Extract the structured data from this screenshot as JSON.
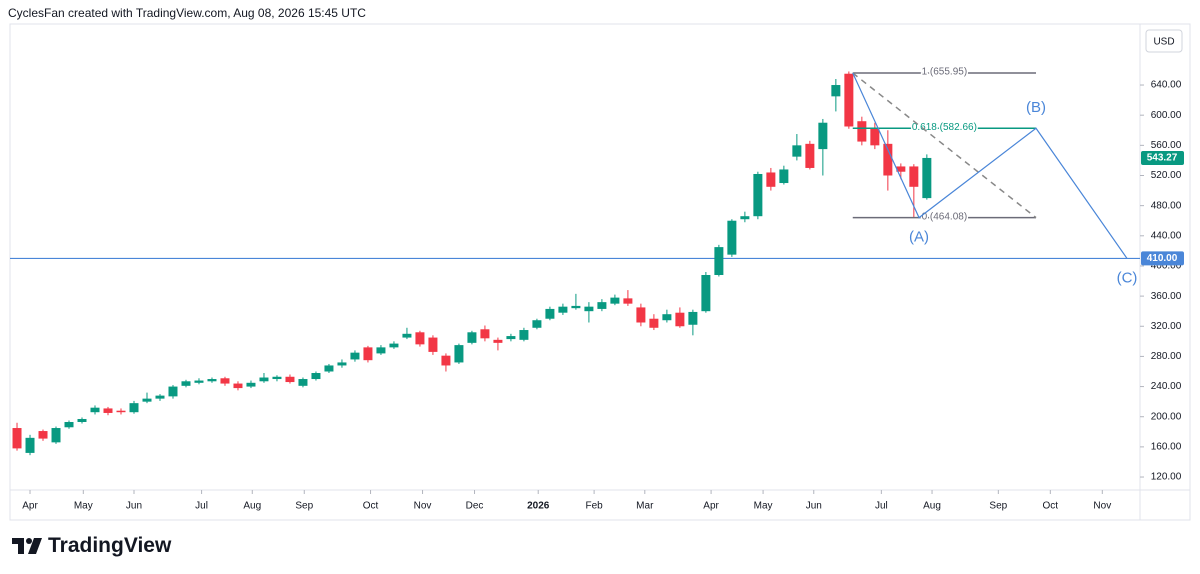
{
  "header": {
    "text": "CyclesFan created with TradingView.com, Aug 08, 2026 15:45 UTC"
  },
  "footer": {
    "brand": "TradingView"
  },
  "chart_data": {
    "type": "candlestick",
    "currency": "USD",
    "up_color": "#089981",
    "down_color": "#f23645",
    "ylim": [
      102.8,
      713
    ],
    "yticks": [
      {
        "value": 120,
        "label": "120.00"
      },
      {
        "value": 160,
        "label": "160.00"
      },
      {
        "value": 200,
        "label": "200.00"
      },
      {
        "value": 240,
        "label": "240.00"
      },
      {
        "value": 280,
        "label": "280.00"
      },
      {
        "value": 320,
        "label": "320.00"
      },
      {
        "value": 360,
        "label": "360.00"
      },
      {
        "value": 400,
        "label": "400.00"
      },
      {
        "value": 440,
        "label": "440.00"
      },
      {
        "value": 480,
        "label": "480.00"
      },
      {
        "value": 520,
        "label": "520.00"
      },
      {
        "value": 560,
        "label": "560.00"
      },
      {
        "value": 600,
        "label": "600.00"
      },
      {
        "value": 640,
        "label": "640.00"
      }
    ],
    "xlim": [
      -0.54,
      86.4
    ],
    "xticks": [
      {
        "value": 1,
        "label": "Apr"
      },
      {
        "value": 5.1,
        "label": "May"
      },
      {
        "value": 9.0,
        "label": "Jun"
      },
      {
        "value": 14.2,
        "label": "Jul"
      },
      {
        "value": 18.1,
        "label": "Aug"
      },
      {
        "value": 22.1,
        "label": "Sep"
      },
      {
        "value": 27.2,
        "label": "Oct"
      },
      {
        "value": 31.2,
        "label": "Nov"
      },
      {
        "value": 35.2,
        "label": "Dec"
      },
      {
        "value": 40.1,
        "label": "2026"
      },
      {
        "value": 44.4,
        "label": "Feb"
      },
      {
        "value": 48.3,
        "label": "Mar"
      },
      {
        "value": 53.4,
        "label": "Apr"
      },
      {
        "value": 57.4,
        "label": "May"
      },
      {
        "value": 61.3,
        "label": "Jun"
      },
      {
        "value": 66.5,
        "label": "Jul"
      },
      {
        "value": 70.4,
        "label": "Aug"
      },
      {
        "value": 75.5,
        "label": "Sep"
      },
      {
        "value": 79.5,
        "label": "Oct"
      },
      {
        "value": 83.5,
        "label": "Nov"
      }
    ],
    "candles": [
      {
        "o": 185,
        "h": 192,
        "l": 155,
        "c": 158
      },
      {
        "o": 152,
        "h": 176,
        "l": 149,
        "c": 172
      },
      {
        "o": 181,
        "h": 183,
        "l": 168,
        "c": 171
      },
      {
        "o": 166,
        "h": 187,
        "l": 164,
        "c": 185
      },
      {
        "o": 186,
        "h": 195,
        "l": 184,
        "c": 193
      },
      {
        "o": 193,
        "h": 199,
        "l": 191,
        "c": 197
      },
      {
        "o": 206,
        "h": 215,
        "l": 203,
        "c": 212
      },
      {
        "o": 211,
        "h": 213,
        "l": 202,
        "c": 205
      },
      {
        "o": 208,
        "h": 211,
        "l": 203,
        "c": 206
      },
      {
        "o": 206,
        "h": 221,
        "l": 204,
        "c": 218
      },
      {
        "o": 220,
        "h": 232,
        "l": 218,
        "c": 224
      },
      {
        "o": 224,
        "h": 230,
        "l": 221,
        "c": 228
      },
      {
        "o": 227,
        "h": 242,
        "l": 224,
        "c": 240
      },
      {
        "o": 241,
        "h": 249,
        "l": 239,
        "c": 247
      },
      {
        "o": 245,
        "h": 251,
        "l": 243,
        "c": 248
      },
      {
        "o": 247,
        "h": 252,
        "l": 245,
        "c": 250
      },
      {
        "o": 251,
        "h": 253,
        "l": 241,
        "c": 244
      },
      {
        "o": 244,
        "h": 247,
        "l": 235,
        "c": 238
      },
      {
        "o": 240,
        "h": 248,
        "l": 238,
        "c": 245
      },
      {
        "o": 247,
        "h": 258,
        "l": 245,
        "c": 252
      },
      {
        "o": 250,
        "h": 255,
        "l": 247,
        "c": 253
      },
      {
        "o": 253,
        "h": 256,
        "l": 244,
        "c": 246
      },
      {
        "o": 241,
        "h": 252,
        "l": 239,
        "c": 250
      },
      {
        "o": 250,
        "h": 260,
        "l": 248,
        "c": 258
      },
      {
        "o": 260,
        "h": 270,
        "l": 258,
        "c": 268
      },
      {
        "o": 268,
        "h": 276,
        "l": 265,
        "c": 272
      },
      {
        "o": 276,
        "h": 288,
        "l": 273,
        "c": 285
      },
      {
        "o": 292,
        "h": 294,
        "l": 272,
        "c": 275
      },
      {
        "o": 284,
        "h": 295,
        "l": 282,
        "c": 292
      },
      {
        "o": 292,
        "h": 300,
        "l": 290,
        "c": 297
      },
      {
        "o": 305,
        "h": 318,
        "l": 303,
        "c": 310
      },
      {
        "o": 312,
        "h": 314,
        "l": 293,
        "c": 296
      },
      {
        "o": 305,
        "h": 308,
        "l": 282,
        "c": 286
      },
      {
        "o": 281,
        "h": 284,
        "l": 260,
        "c": 268
      },
      {
        "o": 272,
        "h": 297,
        "l": 270,
        "c": 295
      },
      {
        "o": 298,
        "h": 314,
        "l": 296,
        "c": 312
      },
      {
        "o": 316,
        "h": 321,
        "l": 300,
        "c": 304
      },
      {
        "o": 302,
        "h": 305,
        "l": 288,
        "c": 298
      },
      {
        "o": 303,
        "h": 310,
        "l": 300,
        "c": 307
      },
      {
        "o": 302,
        "h": 318,
        "l": 300,
        "c": 315
      },
      {
        "o": 318,
        "h": 330,
        "l": 316,
        "c": 328
      },
      {
        "o": 330,
        "h": 346,
        "l": 328,
        "c": 343
      },
      {
        "o": 338,
        "h": 350,
        "l": 335,
        "c": 346
      },
      {
        "o": 344,
        "h": 363,
        "l": 342,
        "c": 347
      },
      {
        "o": 340,
        "h": 352,
        "l": 325,
        "c": 346
      },
      {
        "o": 343,
        "h": 356,
        "l": 340,
        "c": 352
      },
      {
        "o": 350,
        "h": 362,
        "l": 348,
        "c": 358
      },
      {
        "o": 357,
        "h": 368,
        "l": 347,
        "c": 350
      },
      {
        "o": 345,
        "h": 350,
        "l": 320,
        "c": 325
      },
      {
        "o": 330,
        "h": 336,
        "l": 315,
        "c": 318
      },
      {
        "o": 328,
        "h": 342,
        "l": 325,
        "c": 336
      },
      {
        "o": 338,
        "h": 345,
        "l": 318,
        "c": 320
      },
      {
        "o": 322,
        "h": 342,
        "l": 308,
        "c": 339
      },
      {
        "o": 340,
        "h": 392,
        "l": 338,
        "c": 388
      },
      {
        "o": 388,
        "h": 428,
        "l": 386,
        "c": 425
      },
      {
        "o": 415,
        "h": 462,
        "l": 412,
        "c": 460
      },
      {
        "o": 462,
        "h": 472,
        "l": 458,
        "c": 466
      },
      {
        "o": 466,
        "h": 525,
        "l": 462,
        "c": 522
      },
      {
        "o": 524,
        "h": 530,
        "l": 500,
        "c": 505
      },
      {
        "o": 510,
        "h": 533,
        "l": 508,
        "c": 528
      },
      {
        "o": 545,
        "h": 575,
        "l": 540,
        "c": 560
      },
      {
        "o": 562,
        "h": 566,
        "l": 528,
        "c": 530
      },
      {
        "o": 555,
        "h": 595,
        "l": 520,
        "c": 590
      },
      {
        "o": 625,
        "h": 648,
        "l": 605,
        "c": 640
      },
      {
        "o": 655,
        "h": 658,
        "l": 582,
        "c": 585
      },
      {
        "o": 592,
        "h": 598,
        "l": 560,
        "c": 565
      },
      {
        "o": 582,
        "h": 590,
        "l": 555,
        "c": 560
      },
      {
        "o": 562,
        "h": 580,
        "l": 500,
        "c": 520
      },
      {
        "o": 532,
        "h": 536,
        "l": 515,
        "c": 525
      },
      {
        "o": 532,
        "h": 535,
        "l": 464,
        "c": 505
      },
      {
        "o": 490,
        "h": 548,
        "l": 488,
        "c": 543.27
      }
    ],
    "last_price": {
      "value": 543.27,
      "label": "543.27"
    },
    "hline": {
      "value": 410,
      "label": "410.00",
      "color": "#4a86d8"
    },
    "fib": {
      "x_start": 64.3,
      "x_end": 78.4,
      "levels": [
        {
          "label": "1 (655.95)",
          "value": 655.95,
          "color": "#6b6b78"
        },
        {
          "label": "0.618 (582.66)",
          "value": 582.66,
          "color": "#089981"
        },
        {
          "label": "0 (464.08)",
          "value": 464.08,
          "color": "#6b6b78"
        }
      ]
    },
    "waves": {
      "color": "#4a86d8",
      "start": {
        "x": 64.3,
        "price": 655.95
      },
      "points": [
        {
          "label": "(A)",
          "x": 69.4,
          "price": 464.08
        },
        {
          "label": "(B)",
          "x": 78.4,
          "price": 582.66
        },
        {
          "label": "(C)",
          "x": 85.4,
          "price": 410
        }
      ]
    }
  }
}
